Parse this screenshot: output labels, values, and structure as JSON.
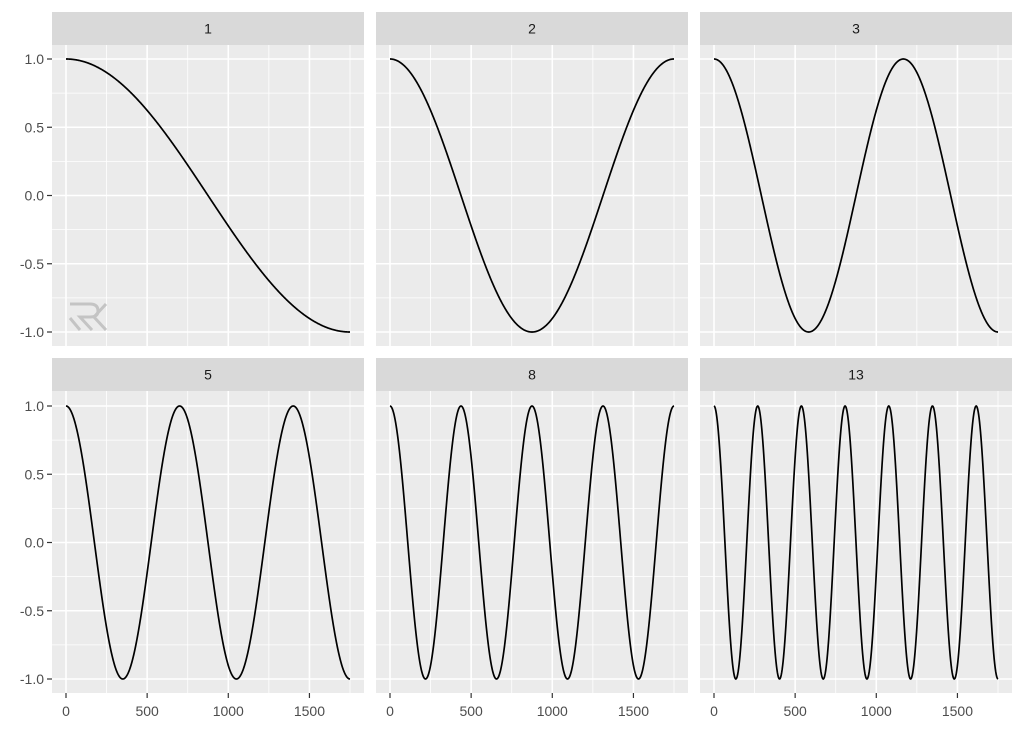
{
  "chart_data": {
    "type": "line",
    "title": "",
    "xlabel": "",
    "ylabel": "",
    "facet_layout": {
      "rows": 2,
      "cols": 3
    },
    "xlim": [
      0,
      1750
    ],
    "ylim": [
      -1.0,
      1.0
    ],
    "x_ticks": [
      0,
      500,
      1000,
      1500
    ],
    "x_tick_labels": [
      "0",
      "500",
      "1000",
      "1500"
    ],
    "y_ticks": [
      1.0,
      0.5,
      0.0,
      -0.5,
      -1.0
    ],
    "y_tick_labels": [
      "1.0",
      "0.5",
      "0.0",
      "-0.5",
      "-1.0"
    ],
    "grid": true,
    "legend": "none",
    "function": "y = cos(k * pi * x / 1750)",
    "panels": [
      {
        "label": "1",
        "k": 1,
        "series": {
          "x": [
            0,
            875,
            1750
          ],
          "y": [
            1.0,
            0.0,
            -1.0
          ]
        }
      },
      {
        "label": "2",
        "k": 2,
        "series": {
          "x": [
            0,
            875,
            1750
          ],
          "y": [
            1.0,
            -1.0,
            1.0
          ]
        }
      },
      {
        "label": "3",
        "k": 3,
        "series": {
          "x": [
            0,
            583,
            1167,
            1750
          ],
          "y": [
            1.0,
            -1.0,
            1.0,
            -1.0
          ]
        }
      },
      {
        "label": "5",
        "k": 5,
        "series": {
          "x": [
            0,
            350,
            700,
            1050,
            1400,
            1750
          ],
          "y": [
            1.0,
            -1.0,
            1.0,
            -1.0,
            1.0,
            -1.0
          ]
        }
      },
      {
        "label": "8",
        "k": 8,
        "series": {
          "x": [
            0,
            219,
            438,
            656,
            875,
            1094,
            1313,
            1531,
            1750
          ],
          "y": [
            1.0,
            -1.0,
            1.0,
            -1.0,
            1.0,
            -1.0,
            1.0,
            -1.0,
            1.0
          ]
        }
      },
      {
        "label": "13",
        "k": 13,
        "series": {
          "x": [
            0,
            135,
            269,
            404,
            538,
            673,
            808,
            942,
            1077,
            1212,
            1346,
            1481,
            1615,
            1750
          ],
          "y": [
            1.0,
            -1.0,
            1.0,
            -1.0,
            1.0,
            -1.0,
            1.0,
            -1.0,
            1.0,
            -1.0,
            1.0,
            -1.0,
            1.0,
            -1.0
          ]
        }
      }
    ],
    "watermark": "RK"
  },
  "colors": {
    "strip": "#d9d9d9",
    "panel": "#ebebeb",
    "grid": "#ffffff",
    "line": "#000000",
    "axis_text": "#4d4d4d"
  }
}
